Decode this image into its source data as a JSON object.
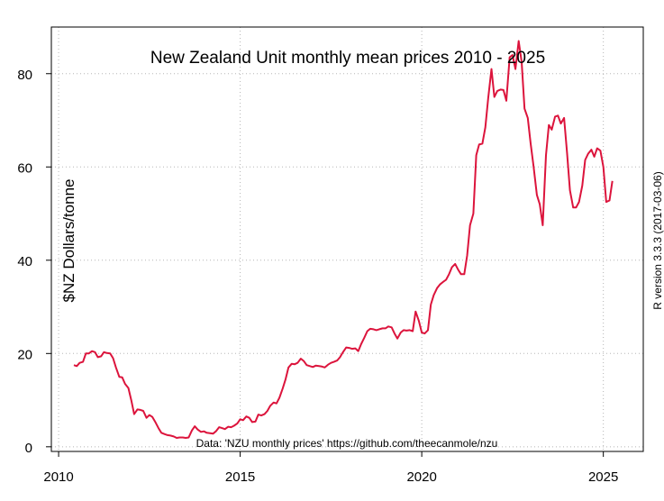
{
  "chart_data": {
    "type": "line",
    "title": "New Zealand Unit monthly mean prices 2010 - 2025",
    "xlabel": "",
    "ylabel": "$NZ Dollars/tonne",
    "xlim": [
      2009.8,
      2026.1
    ],
    "ylim": [
      -1,
      90
    ],
    "x_ticks": [
      2010,
      2015,
      2020,
      2025
    ],
    "y_ticks": [
      0,
      20,
      40,
      60,
      80
    ],
    "grid": true,
    "line_color": "#dc143c",
    "series": [
      {
        "points": [
          [
            2010.42,
            17.5
          ],
          [
            2010.5,
            17.3
          ],
          [
            2010.58,
            18.0
          ],
          [
            2010.67,
            18.2
          ],
          [
            2010.75,
            20.0
          ],
          [
            2010.83,
            20.0
          ],
          [
            2010.92,
            20.5
          ],
          [
            2011.0,
            20.3
          ],
          [
            2011.08,
            19.2
          ],
          [
            2011.17,
            19.4
          ],
          [
            2011.25,
            20.3
          ],
          [
            2011.33,
            20.1
          ],
          [
            2011.42,
            20.0
          ],
          [
            2011.5,
            19.0
          ],
          [
            2011.58,
            17.0
          ],
          [
            2011.67,
            15.0
          ],
          [
            2011.75,
            14.9
          ],
          [
            2011.83,
            13.5
          ],
          [
            2011.92,
            12.6
          ],
          [
            2012.0,
            10.0
          ],
          [
            2012.08,
            7.0
          ],
          [
            2012.17,
            8.0
          ],
          [
            2012.25,
            7.9
          ],
          [
            2012.33,
            7.7
          ],
          [
            2012.42,
            6.2
          ],
          [
            2012.5,
            6.8
          ],
          [
            2012.58,
            6.4
          ],
          [
            2012.67,
            5.2
          ],
          [
            2012.75,
            4.0
          ],
          [
            2012.83,
            3.0
          ],
          [
            2012.92,
            2.7
          ],
          [
            2013.0,
            2.5
          ],
          [
            2013.08,
            2.4
          ],
          [
            2013.17,
            2.2
          ],
          [
            2013.25,
            1.9
          ],
          [
            2013.33,
            2.0
          ],
          [
            2013.42,
            2.0
          ],
          [
            2013.5,
            1.9
          ],
          [
            2013.58,
            2.0
          ],
          [
            2013.67,
            3.5
          ],
          [
            2013.75,
            4.4
          ],
          [
            2013.83,
            3.7
          ],
          [
            2013.92,
            3.2
          ],
          [
            2014.0,
            3.3
          ],
          [
            2014.08,
            3.0
          ],
          [
            2014.17,
            2.9
          ],
          [
            2014.25,
            2.8
          ],
          [
            2014.33,
            3.3
          ],
          [
            2014.42,
            4.2
          ],
          [
            2014.5,
            4.0
          ],
          [
            2014.58,
            3.8
          ],
          [
            2014.67,
            4.3
          ],
          [
            2014.75,
            4.2
          ],
          [
            2014.83,
            4.5
          ],
          [
            2014.92,
            5.0
          ],
          [
            2015.0,
            5.9
          ],
          [
            2015.08,
            5.7
          ],
          [
            2015.17,
            6.5
          ],
          [
            2015.25,
            6.2
          ],
          [
            2015.33,
            5.3
          ],
          [
            2015.42,
            5.4
          ],
          [
            2015.5,
            6.9
          ],
          [
            2015.58,
            6.7
          ],
          [
            2015.67,
            7.0
          ],
          [
            2015.75,
            7.7
          ],
          [
            2015.83,
            8.8
          ],
          [
            2015.92,
            9.5
          ],
          [
            2016.0,
            9.3
          ],
          [
            2016.08,
            10.5
          ],
          [
            2016.17,
            12.5
          ],
          [
            2016.25,
            14.5
          ],
          [
            2016.33,
            17.0
          ],
          [
            2016.42,
            17.8
          ],
          [
            2016.5,
            17.7
          ],
          [
            2016.58,
            18.0
          ],
          [
            2016.67,
            18.9
          ],
          [
            2016.75,
            18.4
          ],
          [
            2016.83,
            17.5
          ],
          [
            2016.92,
            17.3
          ],
          [
            2017.0,
            17.1
          ],
          [
            2017.08,
            17.4
          ],
          [
            2017.17,
            17.3
          ],
          [
            2017.25,
            17.2
          ],
          [
            2017.33,
            17.0
          ],
          [
            2017.42,
            17.6
          ],
          [
            2017.5,
            18.0
          ],
          [
            2017.58,
            18.2
          ],
          [
            2017.67,
            18.5
          ],
          [
            2017.75,
            19.2
          ],
          [
            2017.83,
            20.3
          ],
          [
            2017.92,
            21.3
          ],
          [
            2018.0,
            21.2
          ],
          [
            2018.08,
            21.0
          ],
          [
            2018.17,
            21.1
          ],
          [
            2018.25,
            20.5
          ],
          [
            2018.33,
            22.0
          ],
          [
            2018.42,
            23.4
          ],
          [
            2018.5,
            24.8
          ],
          [
            2018.58,
            25.3
          ],
          [
            2018.67,
            25.2
          ],
          [
            2018.75,
            25.0
          ],
          [
            2018.83,
            25.2
          ],
          [
            2018.92,
            25.4
          ],
          [
            2019.0,
            25.4
          ],
          [
            2019.08,
            25.8
          ],
          [
            2019.17,
            25.6
          ],
          [
            2019.25,
            24.3
          ],
          [
            2019.33,
            23.2
          ],
          [
            2019.42,
            24.5
          ],
          [
            2019.5,
            25.0
          ],
          [
            2019.58,
            24.9
          ],
          [
            2019.67,
            25.0
          ],
          [
            2019.75,
            24.8
          ],
          [
            2019.83,
            29.0
          ],
          [
            2019.92,
            27.0
          ],
          [
            2020.0,
            24.5
          ],
          [
            2020.08,
            24.3
          ],
          [
            2020.17,
            25.0
          ],
          [
            2020.25,
            30.5
          ],
          [
            2020.33,
            32.5
          ],
          [
            2020.42,
            34.0
          ],
          [
            2020.5,
            34.8
          ],
          [
            2020.58,
            35.3
          ],
          [
            2020.67,
            35.8
          ],
          [
            2020.75,
            37.0
          ],
          [
            2020.83,
            38.5
          ],
          [
            2020.92,
            39.2
          ],
          [
            2021.0,
            38.0
          ],
          [
            2021.08,
            37.0
          ],
          [
            2021.17,
            37.0
          ],
          [
            2021.25,
            41.0
          ],
          [
            2021.33,
            47.5
          ],
          [
            2021.42,
            50.0
          ],
          [
            2021.5,
            62.5
          ],
          [
            2021.58,
            64.8
          ],
          [
            2021.67,
            65.0
          ],
          [
            2021.75,
            68.5
          ],
          [
            2021.83,
            74.8
          ],
          [
            2021.92,
            81.0
          ],
          [
            2022.0,
            75.0
          ],
          [
            2022.08,
            76.3
          ],
          [
            2022.17,
            76.6
          ],
          [
            2022.25,
            76.5
          ],
          [
            2022.33,
            74.2
          ],
          [
            2022.42,
            83.5
          ],
          [
            2022.5,
            84.0
          ],
          [
            2022.58,
            81.0
          ],
          [
            2022.67,
            87.0
          ],
          [
            2022.75,
            82.5
          ],
          [
            2022.83,
            72.5
          ],
          [
            2022.92,
            70.5
          ],
          [
            2023.0,
            65.0
          ],
          [
            2023.08,
            60.0
          ],
          [
            2023.17,
            54.0
          ],
          [
            2023.25,
            52.0
          ],
          [
            2023.33,
            47.5
          ],
          [
            2023.42,
            62.5
          ],
          [
            2023.5,
            69.0
          ],
          [
            2023.58,
            68.0
          ],
          [
            2023.67,
            70.8
          ],
          [
            2023.75,
            71.0
          ],
          [
            2023.83,
            69.3
          ],
          [
            2023.92,
            70.5
          ],
          [
            2024.0,
            63.0
          ],
          [
            2024.08,
            55.0
          ],
          [
            2024.17,
            51.3
          ],
          [
            2024.25,
            51.3
          ],
          [
            2024.33,
            52.5
          ],
          [
            2024.42,
            56.0
          ],
          [
            2024.5,
            61.5
          ],
          [
            2024.58,
            62.8
          ],
          [
            2024.67,
            63.7
          ],
          [
            2024.75,
            62.2
          ],
          [
            2024.83,
            64.0
          ],
          [
            2024.92,
            63.5
          ],
          [
            2025.0,
            60.0
          ],
          [
            2025.08,
            52.5
          ],
          [
            2025.17,
            52.8
          ],
          [
            2025.25,
            57.0
          ]
        ]
      }
    ]
  },
  "annotation": "Data: 'NZU monthly prices' https://github.com/theecanmole/nzu",
  "side_note": "R version 3.3.3 (2017-03-06)"
}
